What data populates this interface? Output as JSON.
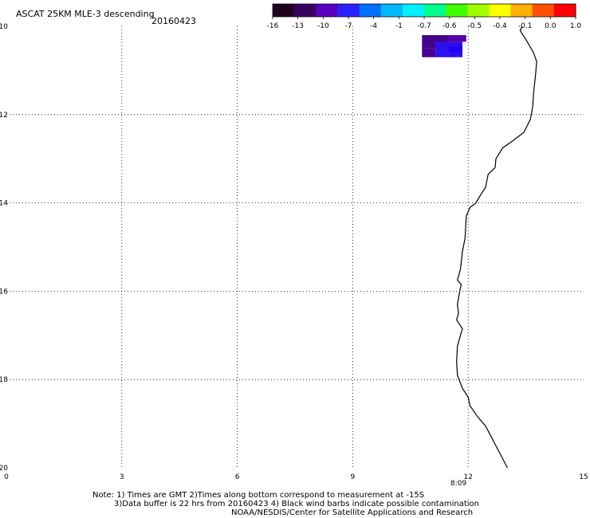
{
  "header": {
    "title": "ASCAT 25KM MLE-3 descending",
    "date": "20160423"
  },
  "colorbar": {
    "tick_labels": [
      "-16",
      "-13",
      "-10",
      "-7",
      "-4",
      "-1",
      "-0.7",
      "-0.6",
      "-0.5",
      "-0.4",
      "-0.1",
      "0.0",
      "1.0"
    ],
    "colors": [
      "#200020",
      "#3a0060",
      "#5a00c0",
      "#2a20ff",
      "#0070ff",
      "#00b8ff",
      "#00f0ff",
      "#00ff90",
      "#40ff00",
      "#a0ff00",
      "#ffff00",
      "#ffb000",
      "#ff5000",
      "#ff0000"
    ]
  },
  "map": {
    "x_ticks": [
      "0",
      "3",
      "6",
      "9",
      "12",
      "15"
    ],
    "y_ticks": [
      "-10",
      "-12",
      "-14",
      "-16",
      "-18",
      "-20"
    ],
    "lon_range": [
      0,
      15
    ],
    "lat_range": [
      -20,
      -10
    ],
    "grid": "dotted",
    "time_label": "8:09",
    "time_label_color": "#cc0000",
    "coast_color": "#000000",
    "swath": [
      {
        "lon_range": [
          10.8,
          11.5
        ],
        "lat_range": [
          -10.2,
          -10.5
        ],
        "color": "#440088"
      },
      {
        "lon_range": [
          11.5,
          11.95
        ],
        "lat_range": [
          -10.2,
          -10.35
        ],
        "color": "#5500aa"
      },
      {
        "lon_range": [
          10.8,
          11.15
        ],
        "lat_range": [
          -10.5,
          -10.7
        ],
        "color": "#4a0090"
      },
      {
        "lon_range": [
          11.15,
          11.85
        ],
        "lat_range": [
          -10.35,
          -10.7
        ],
        "color": "#2e10ee"
      },
      {
        "lon_range": [
          11.5,
          11.85
        ],
        "lat_range": [
          -10.45,
          -10.6
        ],
        "color": "#2200ff"
      }
    ],
    "coastline": [
      [
        13.4,
        -10.0
      ],
      [
        13.35,
        -10.1
      ],
      [
        13.5,
        -10.3
      ],
      [
        13.7,
        -10.6
      ],
      [
        13.78,
        -10.8
      ],
      [
        13.75,
        -11.1
      ],
      [
        13.7,
        -11.5
      ],
      [
        13.68,
        -11.8
      ],
      [
        13.62,
        -12.1
      ],
      [
        13.45,
        -12.4
      ],
      [
        13.15,
        -12.6
      ],
      [
        12.9,
        -12.75
      ],
      [
        12.72,
        -13.0
      ],
      [
        12.7,
        -13.2
      ],
      [
        12.52,
        -13.35
      ],
      [
        12.45,
        -13.65
      ],
      [
        12.3,
        -13.85
      ],
      [
        12.2,
        -14.0
      ],
      [
        12.05,
        -14.1
      ],
      [
        11.95,
        -14.3
      ],
      [
        11.92,
        -14.8
      ],
      [
        11.85,
        -15.1
      ],
      [
        11.8,
        -15.5
      ],
      [
        11.72,
        -15.75
      ],
      [
        11.82,
        -15.85
      ],
      [
        11.78,
        -16.0
      ],
      [
        11.72,
        -16.3
      ],
      [
        11.75,
        -16.5
      ],
      [
        11.7,
        -16.65
      ],
      [
        11.85,
        -16.85
      ],
      [
        11.8,
        -17.0
      ],
      [
        11.72,
        -17.25
      ],
      [
        11.7,
        -17.6
      ],
      [
        11.72,
        -17.9
      ],
      [
        11.85,
        -18.2
      ],
      [
        12.0,
        -18.4
      ],
      [
        12.05,
        -18.6
      ],
      [
        12.25,
        -18.85
      ],
      [
        12.45,
        -19.05
      ],
      [
        12.6,
        -19.3
      ],
      [
        12.75,
        -19.55
      ],
      [
        12.9,
        -19.8
      ],
      [
        13.02,
        -20.0
      ]
    ]
  },
  "notes": {
    "line1": "Note: 1) Times are GMT 2)Times along bottom correspond to measurement at -15S",
    "line2": "3)Data buffer is 22 hrs from 20160423 4) Black wind barbs indicate possible contamination",
    "line3": "NOAA/NESDIS/Center for Satellite Applications and Research"
  }
}
